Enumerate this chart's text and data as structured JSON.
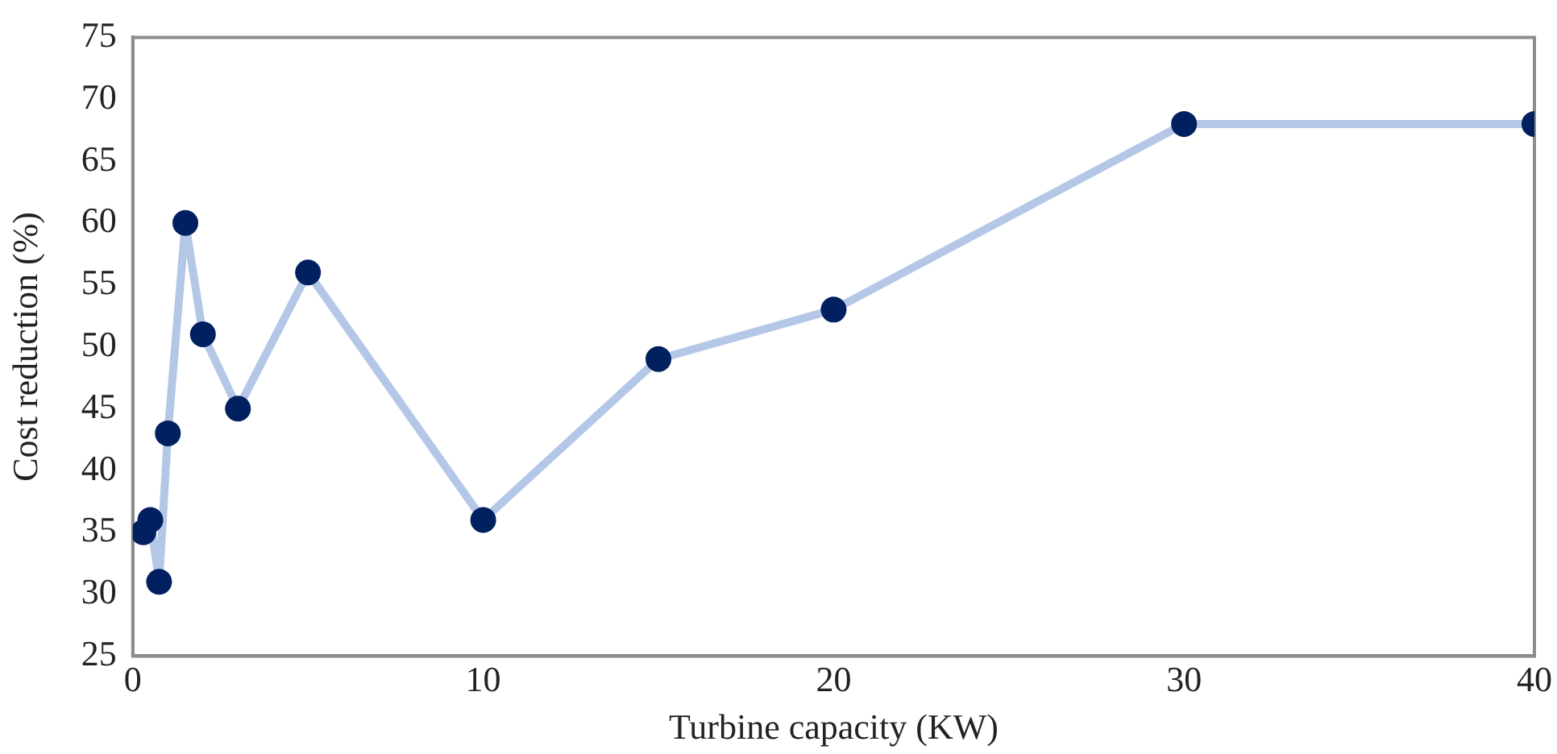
{
  "chart_data": {
    "type": "line",
    "xlabel": "Turbine capacity (KW)",
    "ylabel": "Cost reduction (%)",
    "x": [
      0.3,
      0.5,
      0.75,
      1,
      1.5,
      2,
      3,
      5,
      10,
      15,
      20,
      30,
      40
    ],
    "series": [
      {
        "color": "#b4c7e7",
        "colors": [
          "#002060",
          "#002060",
          "#002060",
          "#002060",
          "#002060",
          "#002060",
          "#002060",
          "#002060",
          "#002060",
          "#002060",
          "#002060",
          "#002060",
          "#002060"
        ],
        "values": [
          35,
          36,
          31,
          43,
          60,
          51,
          45,
          56,
          36,
          49,
          53,
          68,
          68
        ]
      }
    ],
    "xlim": [
      0,
      40
    ],
    "xticks": [
      0,
      10,
      20,
      30,
      40
    ],
    "ylim": [
      25,
      75
    ],
    "yticks": [
      25,
      30,
      35,
      40,
      45,
      50,
      55,
      60,
      65,
      70,
      75
    ],
    "grid": false,
    "legend": false,
    "marker": "circle",
    "line_style": "solid"
  }
}
